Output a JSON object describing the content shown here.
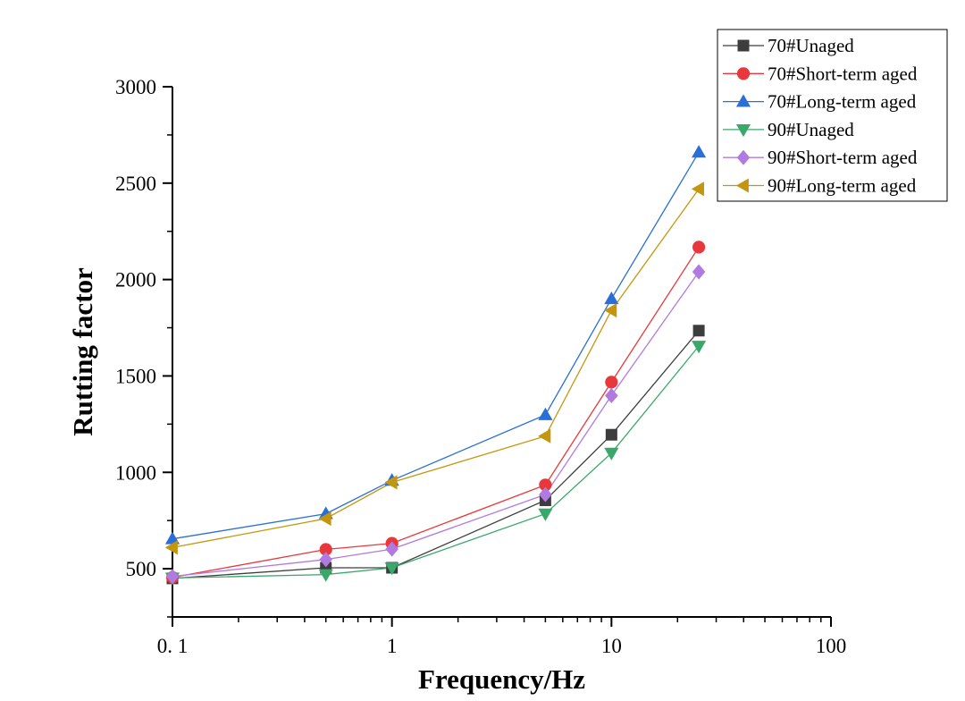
{
  "chart_data": {
    "type": "line",
    "title": "",
    "xlabel": "Frequency/Hz",
    "ylabel": "Rutting factor",
    "xscale": "log",
    "xlim": [
      0.1,
      100
    ],
    "ylim": [
      250,
      3000
    ],
    "x_ticks": [
      0.1,
      1,
      10,
      100
    ],
    "x_tick_labels": [
      "0. 1",
      "1",
      "10",
      "100"
    ],
    "y_ticks": [
      500,
      1000,
      1500,
      2000,
      2500,
      3000
    ],
    "y_tick_labels": [
      "500",
      "1000",
      "1500",
      "2000",
      "2500",
      "3000"
    ],
    "grid": false,
    "legend_position": "top-right",
    "x": [
      0.1,
      0.5,
      1,
      5,
      10,
      25
    ],
    "series": [
      {
        "name": "70#Unaged",
        "marker": "square",
        "color": "#3d3d3d",
        "values": [
          450,
          505,
          505,
          855,
          1195,
          1735
        ]
      },
      {
        "name": "70#Short-term aged",
        "marker": "circle",
        "color": "#e8383d",
        "values": [
          455,
          600,
          632,
          935,
          1468,
          2168
        ]
      },
      {
        "name": "70#Long-term aged",
        "marker": "triangle-up",
        "color": "#2a6fd6",
        "values": [
          655,
          785,
          958,
          1298,
          1900,
          2660
        ]
      },
      {
        "name": "90#Unaged",
        "marker": "triangle-down",
        "color": "#3aa86a",
        "values": [
          452,
          470,
          505,
          785,
          1100,
          1655
        ]
      },
      {
        "name": "90#Short-term aged",
        "marker": "diamond",
        "color": "#b07ae0",
        "values": [
          460,
          548,
          602,
          885,
          1398,
          2040
        ]
      },
      {
        "name": "90#Long-term aged",
        "marker": "triangle-left",
        "color": "#c4960e",
        "values": [
          610,
          760,
          948,
          1188,
          1840,
          2470
        ]
      }
    ]
  }
}
